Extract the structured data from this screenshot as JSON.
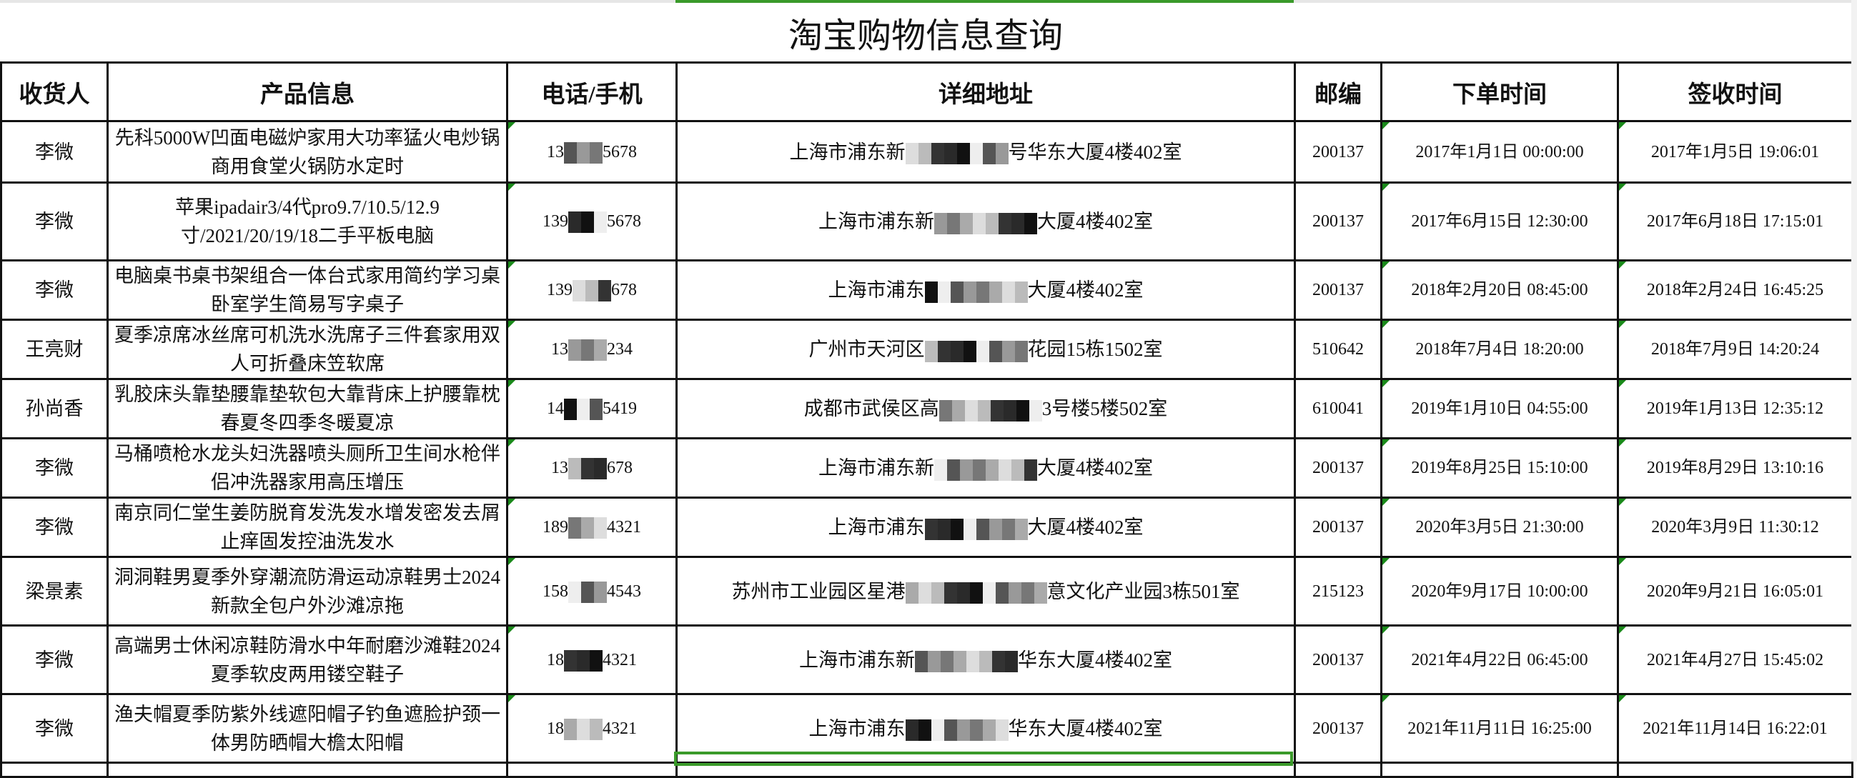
{
  "title": "淘宝购物信息查询",
  "columns": [
    "收货人",
    "产品信息",
    "电话/手机",
    "详细地址",
    "邮编",
    "下单时间",
    "签收时间"
  ],
  "rows": [
    {
      "name": "李微",
      "product": "先科5000W凹面电磁炉家用大功率猛火电炒锅商用食堂火锅防水定时",
      "phone_prefix": "13",
      "phone_suffix": "5678",
      "addr_prefix": "上海市浦东新",
      "addr_suffix": "号华东大厦4楼402室",
      "zip": "200137",
      "order": "2017年1月1日 00:00:00",
      "sign": "2017年1月5日 19:06:01"
    },
    {
      "name": "李微",
      "product": "苹果ipadair3/4代pro9.7/10.5/12.9寸/2021/20/19/18二手平板电脑",
      "phone_prefix": "139",
      "phone_suffix": "5678",
      "addr_prefix": "上海市浦东新",
      "addr_suffix": "大厦4楼402室",
      "zip": "200137",
      "order": "2017年6月15日 12:30:00",
      "sign": "2017年6月18日 17:15:01"
    },
    {
      "name": "李微",
      "product": "电脑桌书桌书架组合一体台式家用简约学习桌卧室学生简易写字桌子",
      "phone_prefix": "139",
      "phone_suffix": "678",
      "addr_prefix": "上海市浦东",
      "addr_suffix": "大厦4楼402室",
      "zip": "200137",
      "order": "2018年2月20日 08:45:00",
      "sign": "2018年2月24日 16:45:25"
    },
    {
      "name": "王亮财",
      "product": "夏季凉席冰丝席可机洗水洗席子三件套家用双人可折叠床笠软席",
      "phone_prefix": "13",
      "phone_suffix": "234",
      "addr_prefix": "广州市天河区",
      "addr_suffix": "花园15栋1502室",
      "zip": "510642",
      "order": "2018年7月4日 18:20:00",
      "sign": "2018年7月9日 14:20:24"
    },
    {
      "name": "孙尚香",
      "product": "乳胶床头靠垫腰靠垫软包大靠背床上护腰靠枕春夏冬四季冬暖夏凉",
      "phone_prefix": "14",
      "phone_suffix": "5419",
      "addr_prefix": "成都市武侯区高",
      "addr_suffix": "3号楼5楼502室",
      "zip": "610041",
      "order": "2019年1月10日 04:55:00",
      "sign": "2019年1月13日 12:35:12"
    },
    {
      "name": "李微",
      "product": "马桶喷枪水龙头妇洗器喷头厕所卫生间水枪伴侣冲洗器家用高压增压",
      "phone_prefix": "13",
      "phone_suffix": "678",
      "addr_prefix": "上海市浦东新",
      "addr_suffix": "大厦4楼402室",
      "zip": "200137",
      "order": "2019年8月25日 15:10:00",
      "sign": "2019年8月29日 13:10:16"
    },
    {
      "name": "李微",
      "product": "南京同仁堂生姜防脱育发洗发水增发密发去屑止痒固发控油洗发水",
      "phone_prefix": "189",
      "phone_suffix": "4321",
      "addr_prefix": "上海市浦东",
      "addr_suffix": "大厦4楼402室",
      "zip": "200137",
      "order": "2020年3月5日 21:30:00",
      "sign": "2020年3月9日 11:30:12"
    },
    {
      "name": "梁景素",
      "product": "洞洞鞋男夏季外穿潮流防滑运动凉鞋男士2024新款全包户外沙滩凉拖",
      "phone_prefix": "158",
      "phone_suffix": "4543",
      "addr_prefix": "苏州市工业园区星港",
      "addr_suffix": "意文化产业园3栋501室",
      "zip": "215123",
      "order": "2020年9月17日 10:00:00",
      "sign": "2020年9月21日 16:05:01"
    },
    {
      "name": "李微",
      "product": "高端男士休闲凉鞋防滑水中年耐磨沙滩鞋2024夏季软皮两用镂空鞋子",
      "phone_prefix": "18",
      "phone_suffix": "4321",
      "addr_prefix": "上海市浦东新",
      "addr_suffix": "华东大厦4楼402室",
      "zip": "200137",
      "order": "2021年4月22日 06:45:00",
      "sign": "2021年4月27日 15:45:02"
    },
    {
      "name": "李微",
      "product": "渔夫帽夏季防紫外线遮阳帽子钓鱼遮脸护颈一体男防晒帽大檐太阳帽",
      "phone_prefix": "18",
      "phone_suffix": "4321",
      "addr_prefix": "上海市浦东",
      "addr_suffix": "华东大厦4楼402室",
      "zip": "200137",
      "order": "2021年11月11日 16:25:00",
      "sign": "2021年11月14日 16:22:01"
    }
  ]
}
